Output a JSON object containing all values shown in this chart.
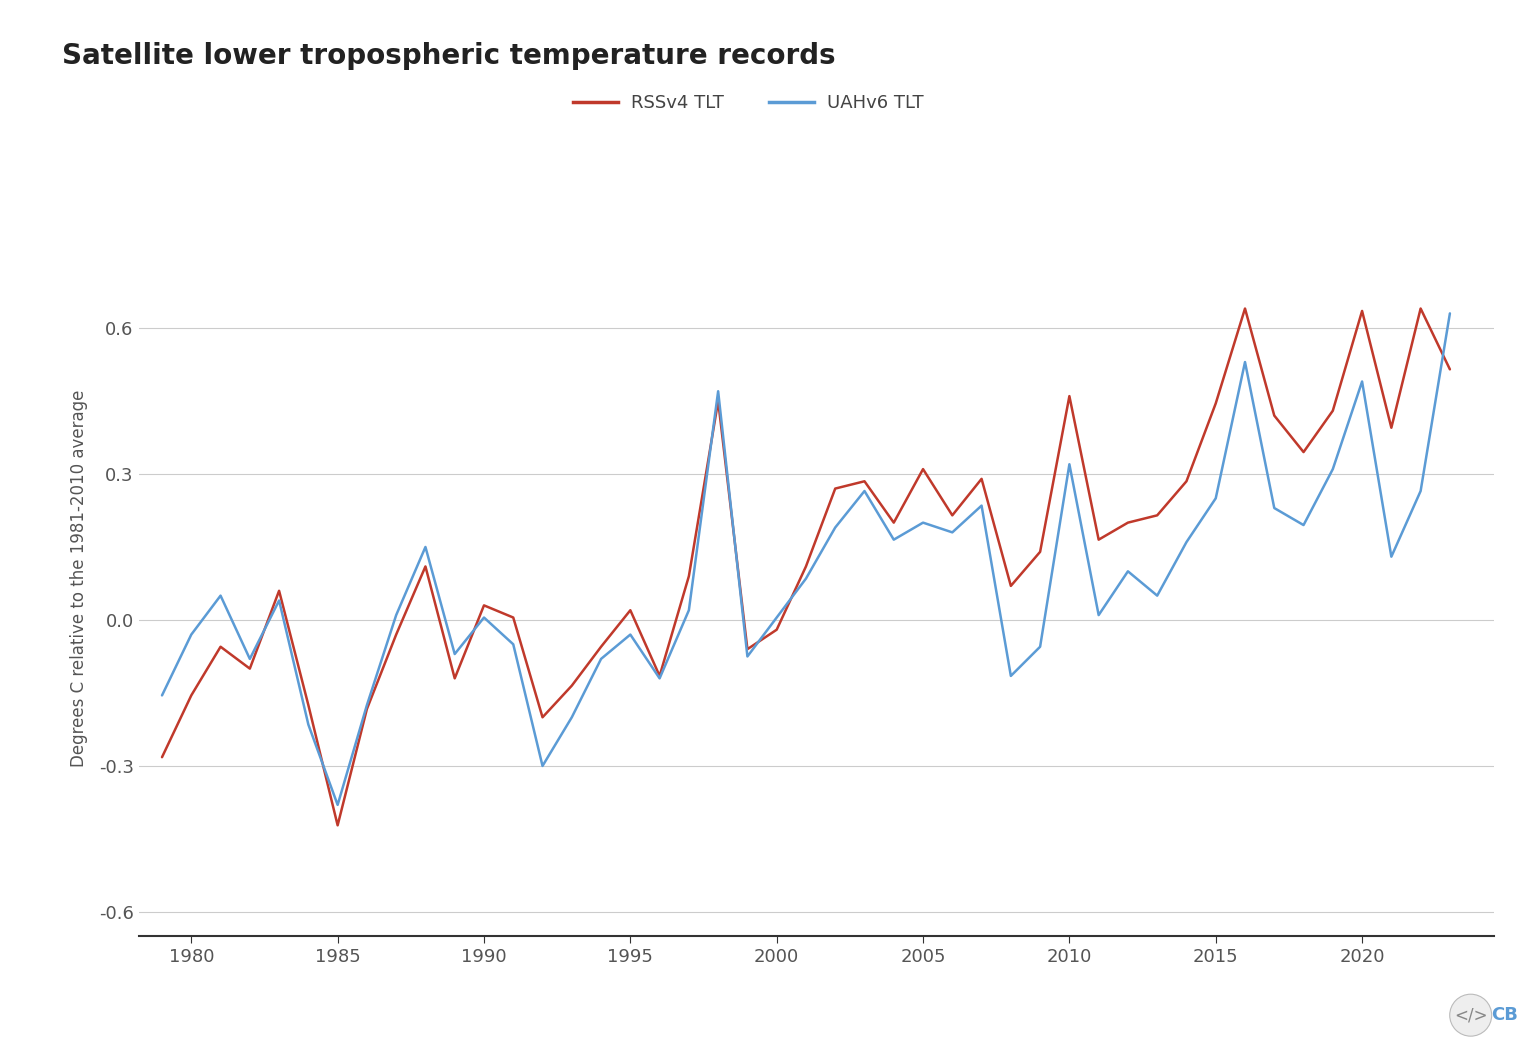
{
  "title": "Satellite lower tropospheric temperature records",
  "ylabel": "Degrees C relative to the 1981-2010 average",
  "rss_label": "RSSv4 TLT",
  "uah_label": "UAHv6 TLT",
  "rss_color": "#c0392b",
  "uah_color": "#5b9bd5",
  "background_color": "#ffffff",
  "grid_color": "#cccccc",
  "ylim": [
    -0.65,
    0.82
  ],
  "xlim": [
    1978.2,
    2024.5
  ],
  "yticks": [
    -0.6,
    -0.3,
    0.0,
    0.3,
    0.6
  ],
  "xticks": [
    1980,
    1985,
    1990,
    1995,
    2000,
    2005,
    2010,
    2015,
    2020
  ],
  "years": [
    1979,
    1980,
    1981,
    1982,
    1983,
    1984,
    1985,
    1986,
    1987,
    1988,
    1989,
    1990,
    1991,
    1992,
    1993,
    1994,
    1995,
    1996,
    1997,
    1998,
    1999,
    2000,
    2001,
    2002,
    2003,
    2004,
    2005,
    2006,
    2007,
    2008,
    2009,
    2010,
    2011,
    2012,
    2013,
    2014,
    2015,
    2016,
    2017,
    2018,
    2019,
    2020,
    2021,
    2022,
    2023
  ],
  "rss": [
    -0.282,
    -0.155,
    -0.055,
    -0.1,
    0.06,
    -0.175,
    -0.422,
    -0.183,
    -0.03,
    0.11,
    -0.12,
    0.03,
    0.005,
    -0.2,
    -0.135,
    -0.055,
    0.02,
    -0.115,
    0.09,
    0.45,
    -0.06,
    -0.02,
    0.11,
    0.27,
    0.285,
    0.2,
    0.31,
    0.215,
    0.29,
    0.07,
    0.14,
    0.46,
    0.165,
    0.2,
    0.215,
    0.285,
    0.445,
    0.64,
    0.42,
    0.345,
    0.43,
    0.635,
    0.395,
    0.64,
    0.515
  ],
  "uah": [
    -0.155,
    -0.03,
    0.05,
    -0.08,
    0.04,
    -0.215,
    -0.38,
    -0.175,
    0.01,
    0.15,
    -0.07,
    0.005,
    -0.05,
    -0.3,
    -0.2,
    -0.08,
    -0.03,
    -0.12,
    0.02,
    0.47,
    -0.075,
    0.005,
    0.085,
    0.19,
    0.265,
    0.165,
    0.2,
    0.18,
    0.235,
    -0.115,
    -0.055,
    0.32,
    0.01,
    0.1,
    0.05,
    0.16,
    0.25,
    0.53,
    0.23,
    0.195,
    0.31,
    0.49,
    0.13,
    0.265,
    0.63
  ]
}
